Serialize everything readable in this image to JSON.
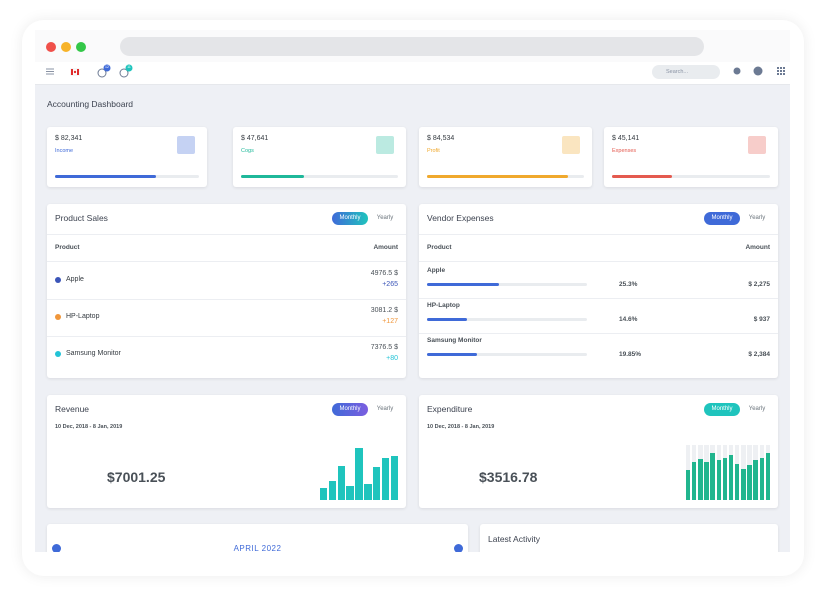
{
  "nav": {
    "search": "Search...",
    "badges": [
      "12",
      "11"
    ]
  },
  "header": {
    "title": "Accounting Dashboard"
  },
  "stats": [
    {
      "value": "$ 82,341",
      "label": "Income",
      "progress": 70,
      "color": "#3f6ad8"
    },
    {
      "value": "$ 47,641",
      "label": "Cogs",
      "progress": 40,
      "color": "#1fb89a"
    },
    {
      "value": "$ 84,534",
      "label": "Profit",
      "progress": 90,
      "color": "#f0a92d"
    },
    {
      "value": "$ 45,141",
      "label": "Expenses",
      "progress": 38,
      "color": "#e45a4f"
    }
  ],
  "product_sales": {
    "title": "Product Sales",
    "toggle": [
      "Monthly",
      "Yearly"
    ],
    "columns": [
      "Product",
      "Amount"
    ],
    "rows": [
      {
        "name": "Apple",
        "amount": "4976.5 $",
        "change": "+265",
        "color": "#3b55b8"
      },
      {
        "name": "HP-Laptop",
        "amount": "3081.2 $",
        "change": "+127",
        "color": "#f0963a"
      },
      {
        "name": "Samsung Monitor",
        "amount": "7376.5 $",
        "change": "+80",
        "color": "#22c3d6"
      }
    ]
  },
  "vendor_expenses": {
    "title": "Vendor Expenses",
    "toggle": [
      "Monthly",
      "Yearly"
    ],
    "columns": [
      "Product",
      "Amount"
    ],
    "rows": [
      {
        "name": "Apple",
        "percent": "25.3%",
        "amount": "$ 2,275",
        "progress": 45
      },
      {
        "name": "HP-Laptop",
        "percent": "14.6%",
        "amount": "$ 937",
        "progress": 25
      },
      {
        "name": "Samsung Monitor",
        "percent": "19.85%",
        "amount": "$ 2,384",
        "progress": 31
      }
    ]
  },
  "revenue": {
    "title": "Revenue",
    "toggle": [
      "Monthly",
      "Yearly"
    ],
    "date": "10 Dec, 2018 - 8 Jan, 2019",
    "total": "$7001.25",
    "bars": [
      22,
      35,
      62,
      25,
      95,
      30,
      60,
      76,
      80
    ],
    "color": "#1fc4bd"
  },
  "expenditure": {
    "title": "Expenditure",
    "toggle": [
      "Monthly",
      "Yearly"
    ],
    "date": "10 Dec, 2018 - 8 Jan, 2019",
    "total": "$3516.78",
    "bars": [
      55,
      70,
      75,
      70,
      85,
      72,
      76,
      82,
      65,
      56,
      64,
      72,
      76,
      86
    ],
    "color": "#21b58e"
  },
  "calendar": {
    "month": "APRIL 2022"
  },
  "activity": {
    "title": "Latest Activity"
  }
}
